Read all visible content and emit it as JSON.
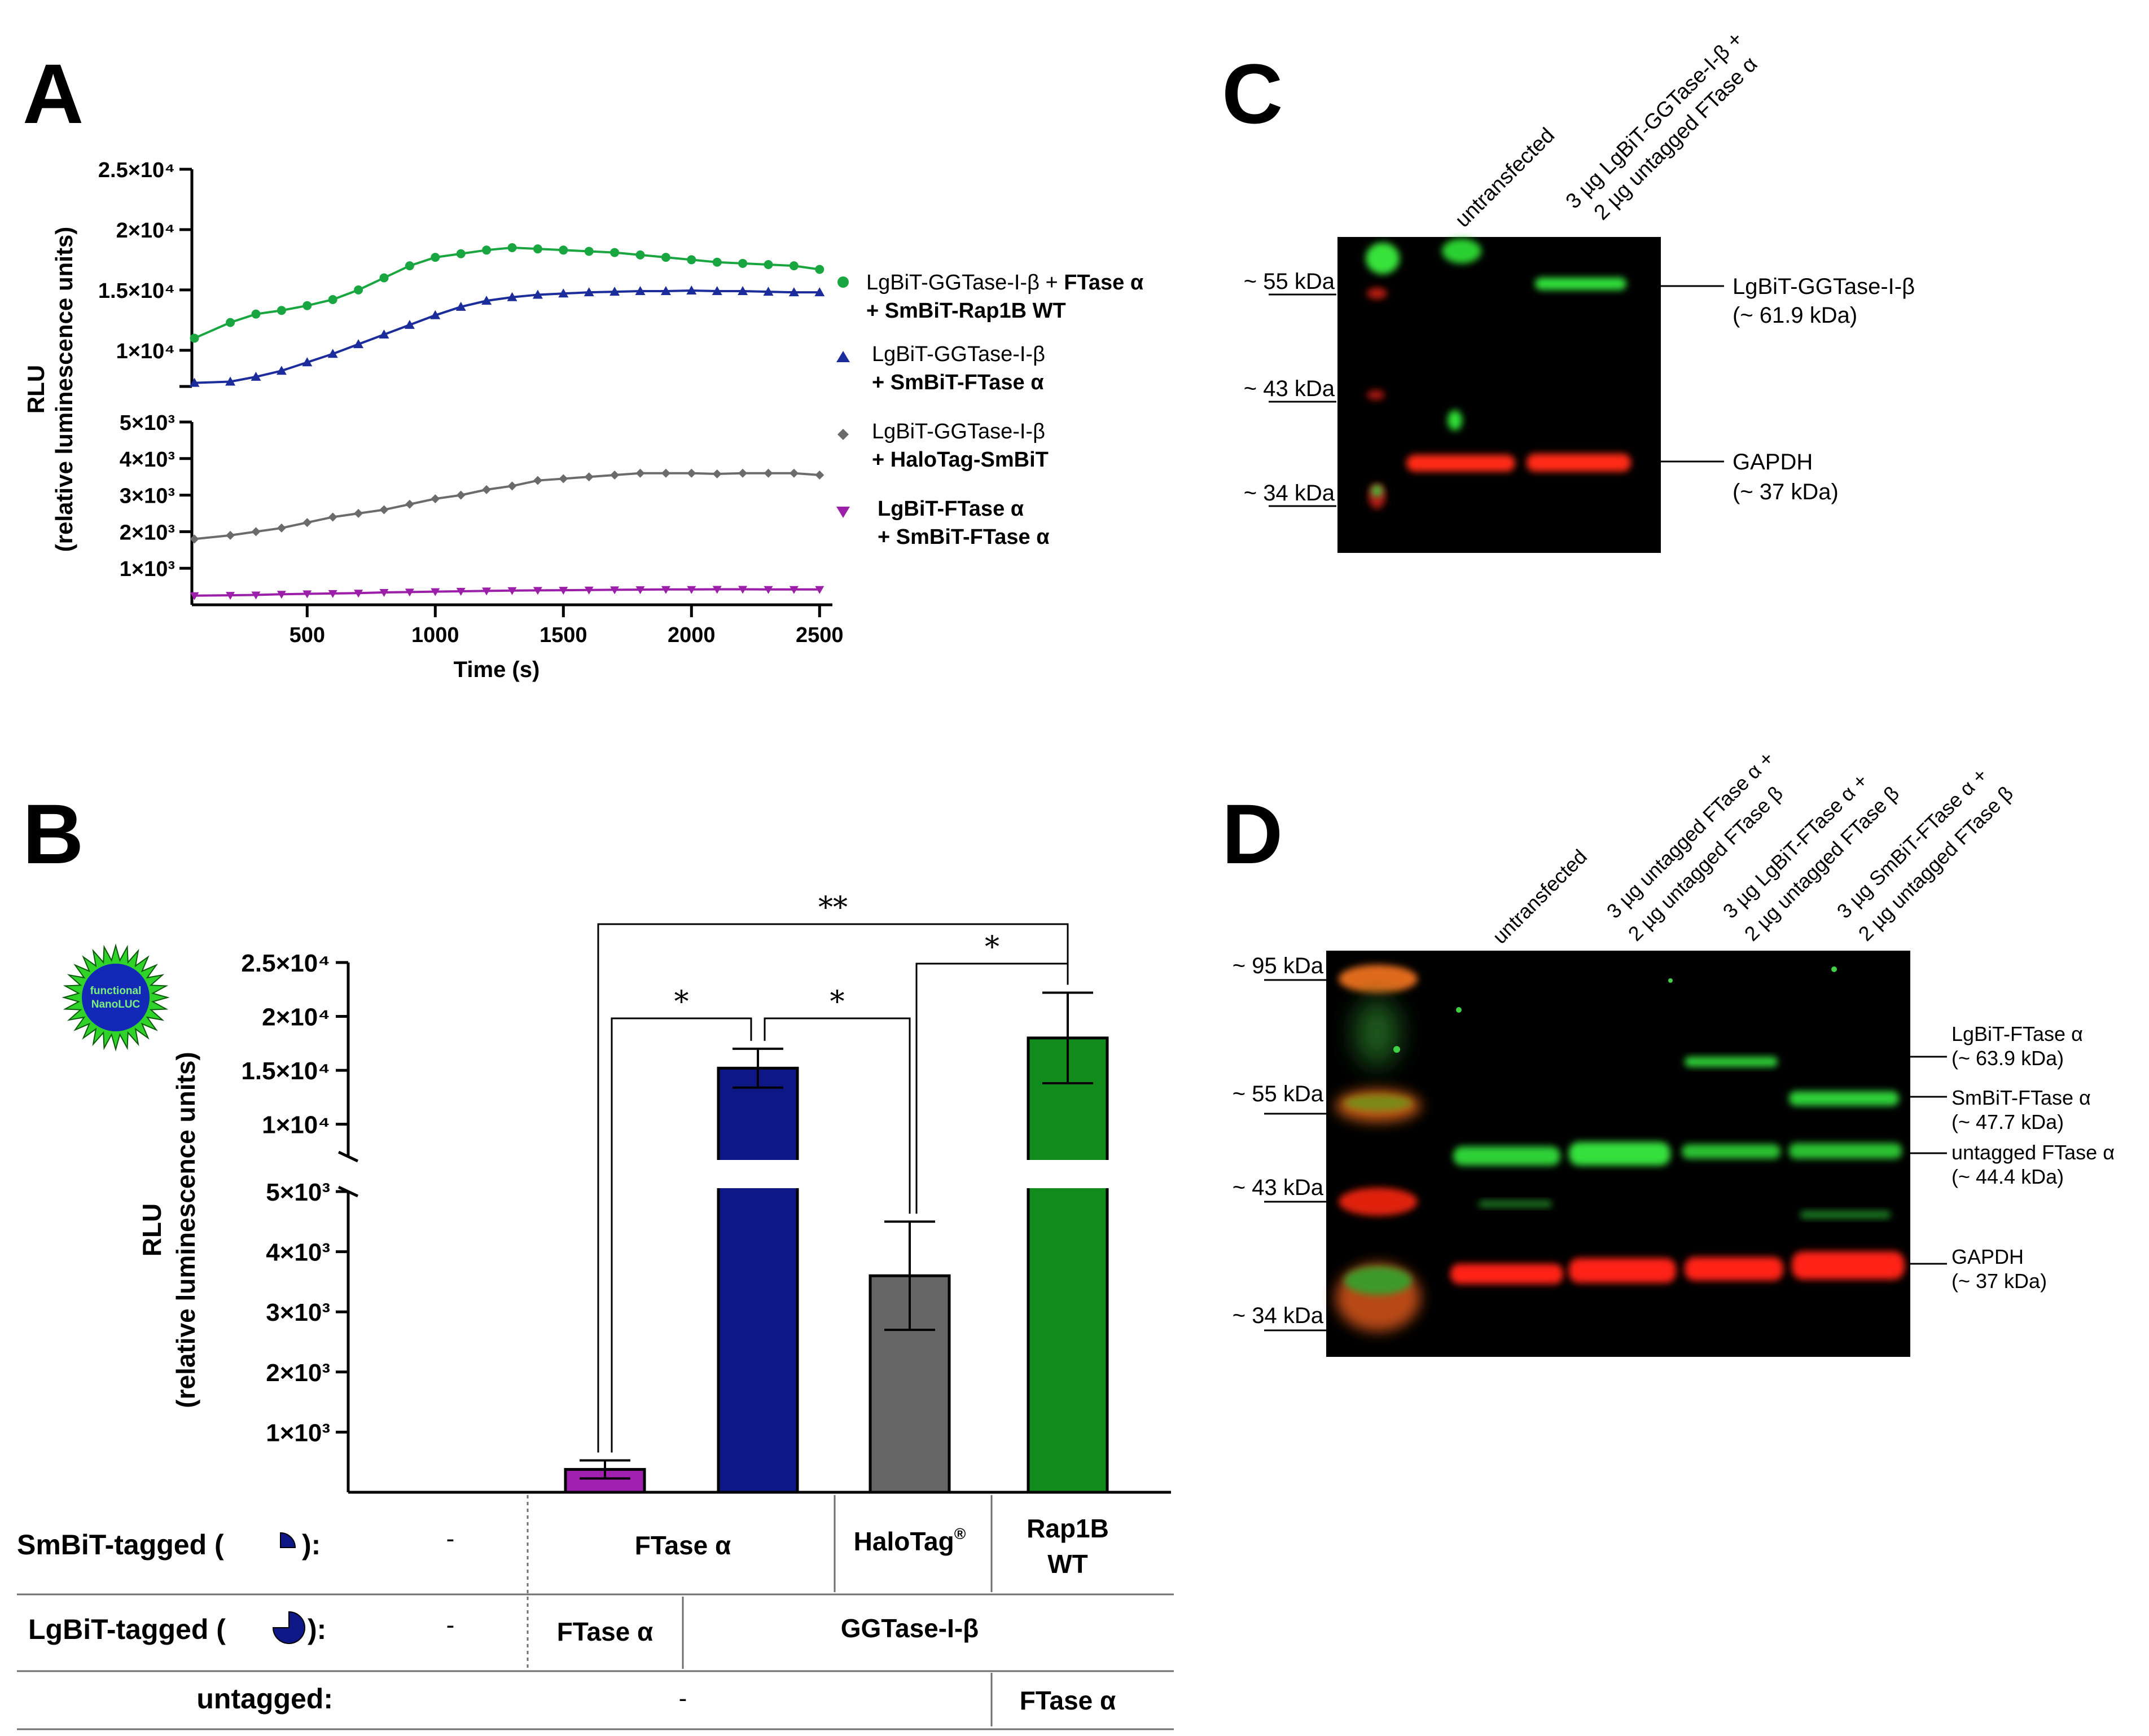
{
  "panels": {
    "a": "A",
    "b": "B",
    "c": "C",
    "d": "D"
  },
  "chart_data": [
    {
      "type": "line",
      "panel": "A",
      "xlabel": "Time (s)",
      "ylabel": "RLU",
      "ylabel2": "(relative luminescence units)",
      "x_ticks": [
        "500",
        "1000",
        "1500",
        "2000",
        "2500"
      ],
      "y_ticks_upper": [
        "2.5×10⁴",
        "2×10⁴",
        "1.5×10⁴",
        "1×10⁴"
      ],
      "y_ticks_lower": [
        "5×10³",
        "4×10³",
        "3×10³",
        "2×10³",
        "1×10³"
      ],
      "xlim": [
        50,
        2550
      ],
      "ylim_upper": [
        7000,
        25000
      ],
      "ylim_lower": [
        0,
        5000
      ],
      "legend": [
        {
          "l1a": "LgBiT-GGTase-I-β + ",
          "l1b": "FTase α",
          "l2": "+ SmBiT-Rap1B WT"
        },
        {
          "l1a": "LgBiT-GGTase-I-β",
          "l1b": "",
          "l2": "+ SmBiT-FTase α"
        },
        {
          "l1a": "LgBiT-GGTase-I-β",
          "l1b": "",
          "l2": "+ HaloTag-SmBiT"
        },
        {
          "l1a": "",
          "l1b": "LgBiT-FTase α",
          "l2": "+ SmBiT-FTase α"
        }
      ],
      "series": [
        {
          "name": "LgBiT-GGTase-I-β + FTase α + SmBiT-Rap1B WT",
          "color": "#19a540",
          "marker": "circle",
          "x": [
            60,
            200,
            300,
            400,
            500,
            600,
            700,
            800,
            900,
            1000,
            1100,
            1200,
            1300,
            1400,
            1500,
            1600,
            1700,
            1800,
            1900,
            2000,
            2100,
            2200,
            2300,
            2400,
            2500
          ],
          "y": [
            11000,
            12300,
            13000,
            13300,
            13700,
            14200,
            15000,
            16000,
            17000,
            17700,
            18000,
            18300,
            18500,
            18400,
            18300,
            18200,
            18100,
            17900,
            17700,
            17500,
            17300,
            17200,
            17100,
            17000,
            16700
          ]
        },
        {
          "name": "LgBiT-GGTase-I-β + SmBiT-FTase α",
          "color": "#1c2c9a",
          "marker": "triangle",
          "x": [
            60,
            200,
            300,
            400,
            500,
            600,
            700,
            800,
            900,
            1000,
            1100,
            1200,
            1300,
            1400,
            1500,
            1600,
            1700,
            1800,
            1900,
            2000,
            2100,
            2200,
            2300,
            2400,
            2500
          ],
          "y": [
            7300,
            7400,
            7800,
            8300,
            9000,
            9700,
            10500,
            11300,
            12100,
            12900,
            13600,
            14100,
            14400,
            14600,
            14700,
            14800,
            14850,
            14900,
            14900,
            14950,
            14900,
            14900,
            14850,
            14800,
            14800
          ]
        },
        {
          "name": "LgBiT-GGTase-I-β + HaloTag-SmBiT",
          "color": "#6b6b6b",
          "marker": "diamond",
          "x": [
            60,
            200,
            300,
            400,
            500,
            600,
            700,
            800,
            900,
            1000,
            1100,
            1200,
            1300,
            1400,
            1500,
            1600,
            1700,
            1800,
            1900,
            2000,
            2100,
            2200,
            2300,
            2400,
            2500
          ],
          "y": [
            1800,
            1900,
            2000,
            2100,
            2250,
            2400,
            2500,
            2600,
            2750,
            2900,
            3000,
            3150,
            3250,
            3400,
            3450,
            3500,
            3550,
            3600,
            3600,
            3600,
            3580,
            3600,
            3600,
            3600,
            3550
          ]
        },
        {
          "name": "LgBiT-FTase α + SmBiT-FTase α",
          "color": "#9b1fa8",
          "marker": "triangle-down",
          "x": [
            60,
            200,
            300,
            400,
            500,
            600,
            700,
            800,
            900,
            1000,
            1100,
            1200,
            1300,
            1400,
            1500,
            1600,
            1700,
            1800,
            1900,
            2000,
            2100,
            2200,
            2300,
            2400,
            2500
          ],
          "y": [
            250,
            260,
            270,
            290,
            300,
            310,
            320,
            340,
            350,
            360,
            370,
            380,
            390,
            395,
            400,
            405,
            410,
            415,
            420,
            420,
            425,
            425,
            420,
            420,
            420
          ]
        }
      ]
    },
    {
      "type": "bar",
      "panel": "B",
      "ylabel": "RLU",
      "ylabel2": "(relative luminescence units)",
      "y_ticks_upper": [
        "2.5×10⁴",
        "2×10⁴",
        "1.5×10⁴",
        "1×10⁴"
      ],
      "y_ticks_lower": [
        "5×10³",
        "4×10³",
        "3×10³",
        "2×10³",
        "1×10³"
      ],
      "ylim_upper": [
        7000,
        25000
      ],
      "ylim_lower": [
        0,
        5000
      ],
      "categories": [
        "-",
        "FTase α / FTase α",
        "FTase α / GGTase-I-β",
        "HaloTag / GGTase-I-β",
        "Rap1B WT / GGTase-I-β + FTase α"
      ],
      "values": [
        0,
        380,
        15200,
        3600,
        18000
      ],
      "errors": [
        0,
        150,
        1800,
        900,
        4200
      ],
      "colors": [
        "#ffffff",
        "#a020b0",
        "#0d1886",
        "#666666",
        "#118b1c"
      ],
      "significance": [
        "**",
        "*",
        "*",
        "*"
      ],
      "icon_text": [
        "functional",
        "NanoLUC"
      ],
      "table": {
        "row1_label": "SmBiT-tagged (",
        "row2_label": "LgBiT-tagged (",
        "row3_label": "untagged:",
        "label_close": "):",
        "dash": "-",
        "smbit_ftase": "FTase α",
        "halotag": "HaloTag",
        "halotag_sup": "®",
        "rap1b_1": "Rap1B",
        "rap1b_2": "WT",
        "lgbit_ftase": "FTase α",
        "lgbit_ggtase": "GGTase-I-β",
        "untagged_ftase": "FTase α"
      }
    }
  ],
  "blot_c": {
    "markers": [
      "~ 55 kDa",
      "~ 43 kDa",
      "~ 34 kDa"
    ],
    "lanes": [
      "untransfected",
      "3 µg LgBiT-GGTase-I-β +",
      "2 µg untagged FTase α"
    ],
    "bands": [
      {
        "name": "LgBiT-GGTase-I-β",
        "size": "(~ 61.9 kDa)"
      },
      {
        "name": "GAPDH",
        "size": "(~ 37 kDa)"
      }
    ]
  },
  "blot_d": {
    "markers": [
      "~ 95 kDa",
      "~ 55 kDa",
      "~ 43 kDa",
      "~ 34 kDa"
    ],
    "lanes": [
      {
        "l1": "untransfected",
        "l2": ""
      },
      {
        "l1": "3 µg untagged FTase α +",
        "l2": "2 µg untagged FTase β"
      },
      {
        "l1": "3 µg LgBiT-FTase α +",
        "l2": "2 µg untagged FTase β"
      },
      {
        "l1": "3 µg SmBiT-FTase α +",
        "l2": "2 µg untagged FTase β"
      }
    ],
    "bands": [
      {
        "name": "LgBiT-FTase α",
        "size": "(~ 63.9 kDa)"
      },
      {
        "name": "SmBiT-FTase α",
        "size": "(~ 47.7 kDa)"
      },
      {
        "name": "untagged FTase α",
        "size": "(~ 44.4 kDa)"
      },
      {
        "name": "GAPDH",
        "size": "(~ 37 kDa)"
      }
    ]
  }
}
